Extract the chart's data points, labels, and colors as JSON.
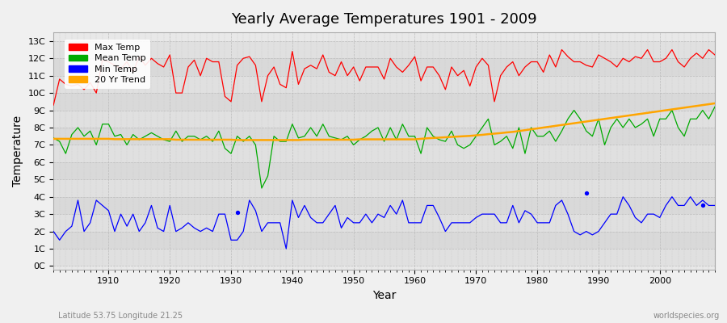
{
  "title": "Yearly Average Temperatures 1901 - 2009",
  "xlabel": "Year",
  "ylabel": "Temperature",
  "start_year": 1901,
  "end_year": 2009,
  "yticks": [
    0,
    1,
    2,
    3,
    4,
    5,
    6,
    7,
    8,
    9,
    10,
    11,
    12,
    13
  ],
  "ylabels": [
    "0C",
    "1C",
    "2C",
    "3C",
    "4C",
    "5C",
    "6C",
    "7C",
    "8C",
    "9C",
    "10C",
    "11C",
    "12C",
    "13C"
  ],
  "ylim": [
    -0.2,
    13.5
  ],
  "background_color": "#f0f0f0",
  "plot_bg_color": "#e8e8e8",
  "colors": {
    "max": "#ff0000",
    "mean": "#00aa00",
    "min": "#0000ff",
    "trend": "#ffa500"
  },
  "legend_labels": [
    "Max Temp",
    "Mean Temp",
    "Min Temp",
    "20 Yr Trend"
  ],
  "subtitle_left": "Latitude 53.75 Longitude 21.25",
  "subtitle_right": "worldspecies.org",
  "max_temps": [
    9.3,
    10.8,
    10.5,
    10.4,
    10.5,
    10.2,
    10.6,
    10.0,
    11.9,
    11.8,
    11.6,
    11.4,
    11.8,
    11.2,
    12.1,
    11.6,
    12.0,
    11.7,
    11.5,
    12.2,
    10.0,
    10.0,
    11.5,
    11.9,
    11.0,
    12.0,
    11.8,
    11.8,
    9.8,
    9.5,
    11.6,
    12.0,
    12.1,
    11.6,
    9.5,
    11.0,
    11.5,
    10.5,
    10.3,
    12.4,
    10.5,
    11.4,
    11.6,
    11.4,
    12.2,
    11.2,
    11.0,
    11.8,
    11.0,
    11.5,
    10.7,
    11.5,
    11.5,
    11.5,
    10.8,
    12.0,
    11.5,
    11.2,
    11.6,
    12.1,
    10.7,
    11.5,
    11.5,
    11.0,
    10.2,
    11.5,
    11.0,
    11.3,
    10.4,
    11.5,
    12.0,
    11.6,
    9.5,
    11.0,
    11.5,
    11.8,
    11.0,
    11.5,
    11.8,
    11.8,
    11.2,
    12.2,
    11.5,
    12.5,
    12.1,
    11.8,
    11.8,
    11.6,
    11.5,
    12.2,
    12.0,
    11.8,
    11.5,
    12.0,
    11.8,
    12.1,
    12.0,
    12.5,
    11.8,
    11.8,
    12.0,
    12.5,
    11.8,
    11.5,
    12.0,
    12.3,
    12.0,
    12.5,
    12.2
  ],
  "mean_temps": [
    7.4,
    7.2,
    6.5,
    7.6,
    8.0,
    7.5,
    7.8,
    7.0,
    8.2,
    8.2,
    7.5,
    7.6,
    7.0,
    7.6,
    7.3,
    7.5,
    7.7,
    7.5,
    7.3,
    7.2,
    7.8,
    7.2,
    7.5,
    7.5,
    7.3,
    7.5,
    7.2,
    7.8,
    6.8,
    6.5,
    7.5,
    7.2,
    7.5,
    7.0,
    4.5,
    5.2,
    7.5,
    7.2,
    7.2,
    8.2,
    7.4,
    7.5,
    8.0,
    7.5,
    8.2,
    7.5,
    7.4,
    7.3,
    7.5,
    7.0,
    7.3,
    7.5,
    7.8,
    8.0,
    7.2,
    8.0,
    7.3,
    8.2,
    7.5,
    7.5,
    6.5,
    8.0,
    7.5,
    7.3,
    7.2,
    7.8,
    7.0,
    6.8,
    7.0,
    7.5,
    8.0,
    8.5,
    7.0,
    7.2,
    7.5,
    6.8,
    8.0,
    6.5,
    8.0,
    7.5,
    7.5,
    7.8,
    7.2,
    7.8,
    8.5,
    9.0,
    8.5,
    7.8,
    7.5,
    8.5,
    7.0,
    8.0,
    8.5,
    8.0,
    8.5,
    8.0,
    8.2,
    8.5,
    7.5,
    8.5,
    8.5,
    9.0,
    8.0,
    7.5,
    8.5,
    8.5,
    9.0,
    8.5,
    9.2
  ],
  "min_temps": [
    2.0,
    1.5,
    2.0,
    2.3,
    3.8,
    2.0,
    2.5,
    3.8,
    3.5,
    3.2,
    2.0,
    3.0,
    2.3,
    3.0,
    2.0,
    2.5,
    3.5,
    2.2,
    2.0,
    3.5,
    2.0,
    2.2,
    2.5,
    2.2,
    2.0,
    2.2,
    2.0,
    3.0,
    3.0,
    1.5,
    1.5,
    2.0,
    3.8,
    3.2,
    2.0,
    2.5,
    2.5,
    2.5,
    1.0,
    3.8,
    2.8,
    3.5,
    2.8,
    2.5,
    2.5,
    3.0,
    3.5,
    2.2,
    2.8,
    2.5,
    2.5,
    3.0,
    2.5,
    3.0,
    2.8,
    3.5,
    3.0,
    3.8,
    2.5,
    2.5,
    2.5,
    3.5,
    3.5,
    2.8,
    2.0,
    2.5,
    2.5,
    2.5,
    2.5,
    2.8,
    3.0,
    3.0,
    3.0,
    2.5,
    2.5,
    3.5,
    2.5,
    3.2,
    3.0,
    2.5,
    2.5,
    2.5,
    3.5,
    3.8,
    3.0,
    2.0,
    1.8,
    2.0,
    1.8,
    2.0,
    2.5,
    3.0,
    3.0,
    4.0,
    3.5,
    2.8,
    2.5,
    3.0,
    3.0,
    2.8,
    3.5,
    4.0,
    3.5,
    3.5,
    4.0,
    3.5,
    3.8,
    3.5,
    3.5
  ],
  "trend_temps": [
    7.35,
    7.35,
    7.35,
    7.35,
    7.35,
    7.35,
    7.35,
    7.35,
    7.35,
    7.35,
    7.33,
    7.33,
    7.33,
    7.33,
    7.33,
    7.33,
    7.33,
    7.33,
    7.33,
    7.33,
    7.3,
    7.3,
    7.3,
    7.3,
    7.3,
    7.3,
    7.3,
    7.3,
    7.3,
    7.3,
    7.28,
    7.28,
    7.28,
    7.28,
    7.28,
    7.28,
    7.28,
    7.28,
    7.28,
    7.28,
    7.28,
    7.3,
    7.3,
    7.3,
    7.3,
    7.3,
    7.3,
    7.3,
    7.3,
    7.3,
    7.32,
    7.32,
    7.32,
    7.32,
    7.32,
    7.32,
    7.32,
    7.32,
    7.32,
    7.32,
    7.35,
    7.38,
    7.4,
    7.42,
    7.44,
    7.46,
    7.48,
    7.5,
    7.52,
    7.55,
    7.58,
    7.62,
    7.65,
    7.68,
    7.72,
    7.75,
    7.8,
    7.85,
    7.9,
    7.95,
    8.0,
    8.05,
    8.1,
    8.15,
    8.2,
    8.25,
    8.3,
    8.35,
    8.4,
    8.45,
    8.5,
    8.55,
    8.6,
    8.65,
    8.7,
    8.75,
    8.8,
    8.85,
    8.9,
    8.95,
    9.0,
    9.05,
    9.1,
    9.15,
    9.2,
    9.25,
    9.3,
    9.35,
    9.4
  ],
  "outlier_years": [
    1931,
    1988,
    2007
  ],
  "outlier_vals": [
    3.1,
    4.2,
    3.5
  ]
}
